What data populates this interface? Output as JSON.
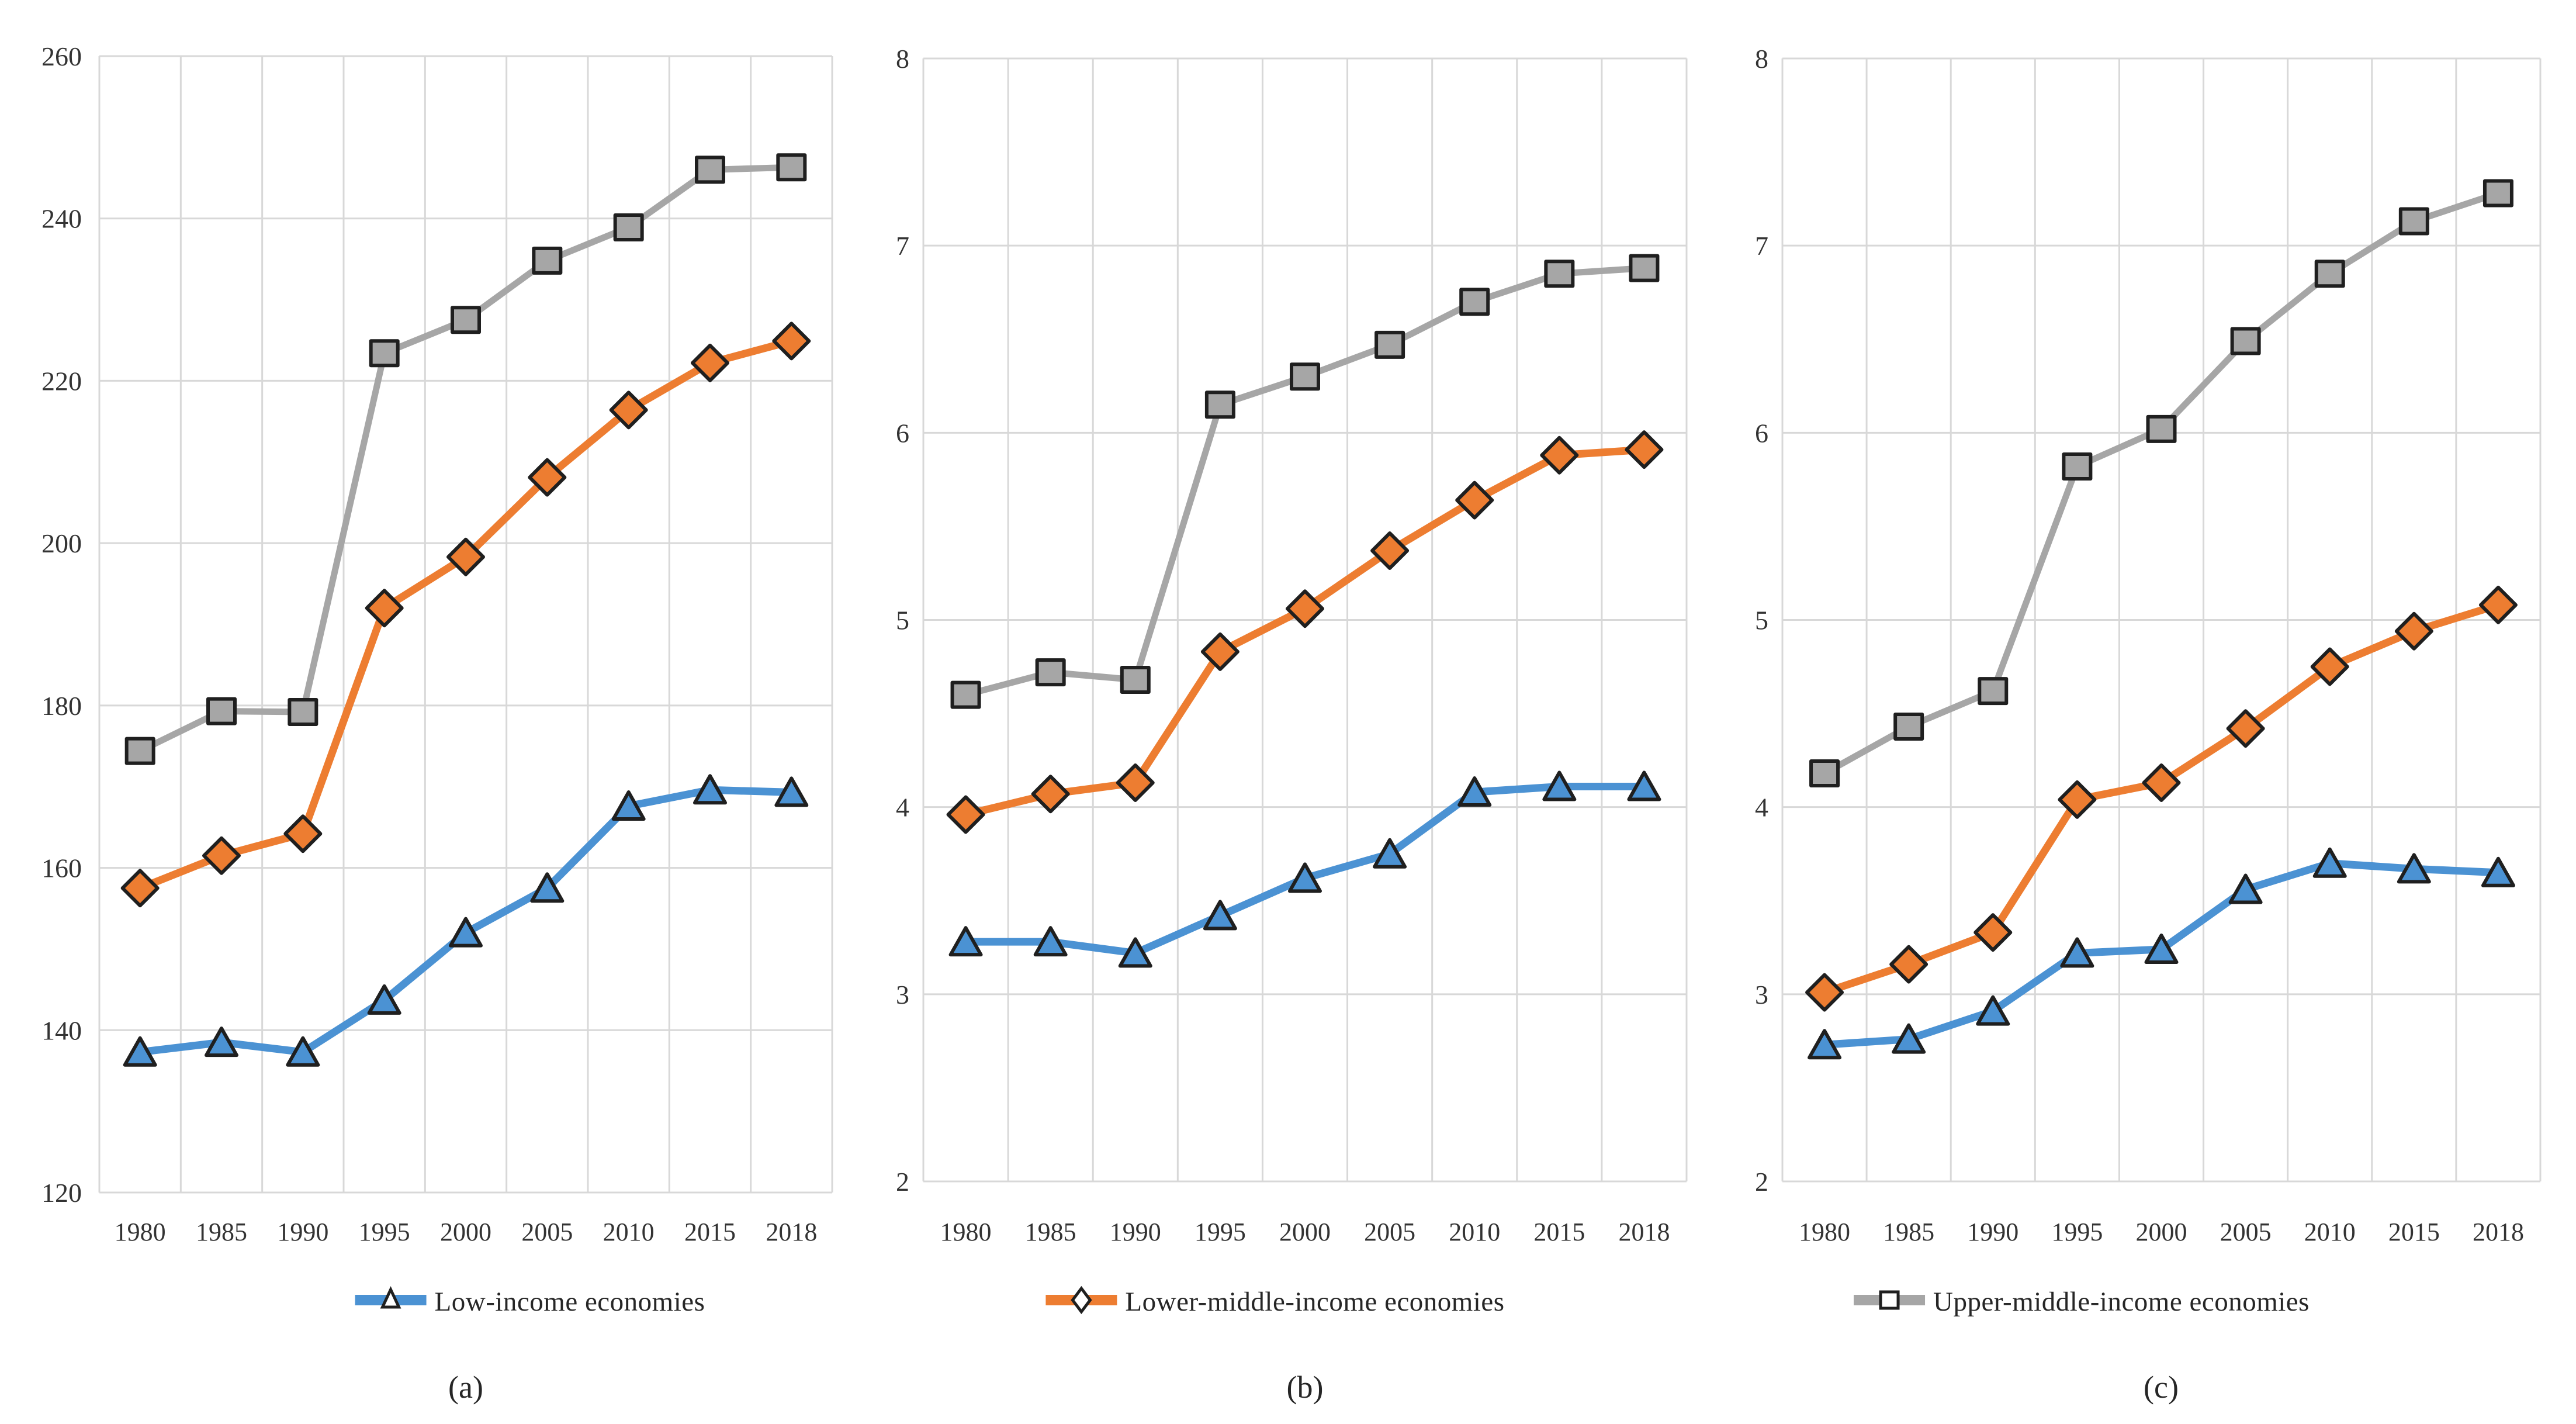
{
  "page": {
    "background": "#ffffff"
  },
  "captions": [
    "(a)",
    "(b)",
    "(c)"
  ],
  "colors": {
    "low_income": "#4B92D3",
    "lower_middle_income": "#ED7D31",
    "upper_middle_income": "#A6A6A6",
    "marker_border": "#1F1F1F",
    "gridline": "#D8D8D8",
    "tick_text": "#333333"
  },
  "chart_data": [
    {
      "type": "line",
      "panel": "a",
      "title": "",
      "xlabel": "",
      "ylabel": "",
      "grid": true,
      "legend_position": "bottom",
      "legend_label": "Low-income economies",
      "legend_marker": "triangle",
      "legend_color": "#4B92D3",
      "categories": [
        "1980",
        "1985",
        "1990",
        "1995",
        "2000",
        "2005",
        "2010",
        "2015",
        "2018"
      ],
      "ylim": [
        120,
        260
      ],
      "ytick_step": 20,
      "series": [
        {
          "name": "Low-income economies",
          "marker": "triangle",
          "color": "#4B92D3",
          "z_order": 2,
          "values": [
            137.3,
            138.5,
            137.3,
            143.7,
            152.0,
            157.5,
            167.6,
            169.6,
            169.3
          ]
        },
        {
          "name": "Lower-middle-income economies",
          "marker": "diamond",
          "color": "#ED7D31",
          "z_order": 3,
          "values": [
            157.5,
            161.5,
            164.2,
            192.0,
            198.3,
            208.1,
            216.4,
            222.2,
            224.9
          ]
        },
        {
          "name": "Upper-middle-income economies",
          "marker": "square",
          "color": "#A6A6A6",
          "z_order": 1,
          "values": [
            174.4,
            179.3,
            179.2,
            223.4,
            227.5,
            234.8,
            238.9,
            246.0,
            246.3
          ]
        }
      ]
    },
    {
      "type": "line",
      "panel": "b",
      "title": "",
      "xlabel": "",
      "ylabel": "",
      "grid": true,
      "legend_position": "bottom",
      "legend_label": "Lower-middle-income economies",
      "legend_marker": "diamond",
      "legend_color": "#ED7D31",
      "categories": [
        "1980",
        "1985",
        "1990",
        "1995",
        "2000",
        "2005",
        "2010",
        "2015",
        "2018"
      ],
      "ylim": [
        2,
        8
      ],
      "ytick_step": 1,
      "series": [
        {
          "name": "Low-income economies",
          "marker": "triangle",
          "color": "#4B92D3",
          "z_order": 2,
          "values": [
            3.28,
            3.28,
            3.22,
            3.42,
            3.62,
            3.75,
            4.08,
            4.11,
            4.11
          ]
        },
        {
          "name": "Lower-middle-income economies",
          "marker": "diamond",
          "color": "#ED7D31",
          "z_order": 3,
          "values": [
            3.96,
            4.07,
            4.13,
            4.83,
            5.06,
            5.37,
            5.64,
            5.88,
            5.91
          ]
        },
        {
          "name": "Upper-middle-income economies",
          "marker": "square",
          "color": "#A6A6A6",
          "z_order": 1,
          "values": [
            4.6,
            4.72,
            4.68,
            6.15,
            6.3,
            6.47,
            6.7,
            6.85,
            6.88
          ]
        }
      ]
    },
    {
      "type": "line",
      "panel": "c",
      "title": "",
      "xlabel": "",
      "ylabel": "",
      "grid": true,
      "legend_position": "bottom",
      "legend_label": "Upper-middle-income economies",
      "legend_marker": "square",
      "legend_color": "#A6A6A6",
      "categories": [
        "1980",
        "1985",
        "1990",
        "1995",
        "2000",
        "2005",
        "2010",
        "2015",
        "2018"
      ],
      "ylim": [
        2,
        8
      ],
      "ytick_step": 1,
      "series": [
        {
          "name": "Low-income economies",
          "marker": "triangle",
          "color": "#4B92D3",
          "z_order": 2,
          "values": [
            2.73,
            2.76,
            2.91,
            3.22,
            3.24,
            3.56,
            3.7,
            3.67,
            3.65
          ]
        },
        {
          "name": "Lower-middle-income economies",
          "marker": "diamond",
          "color": "#ED7D31",
          "z_order": 3,
          "values": [
            3.01,
            3.16,
            3.33,
            4.04,
            4.13,
            4.42,
            4.75,
            4.94,
            5.08
          ]
        },
        {
          "name": "Upper-middle-income economies",
          "marker": "square",
          "color": "#A6A6A6",
          "z_order": 1,
          "values": [
            4.18,
            4.43,
            4.62,
            5.82,
            6.02,
            6.49,
            6.85,
            7.13,
            7.28
          ]
        }
      ]
    }
  ]
}
